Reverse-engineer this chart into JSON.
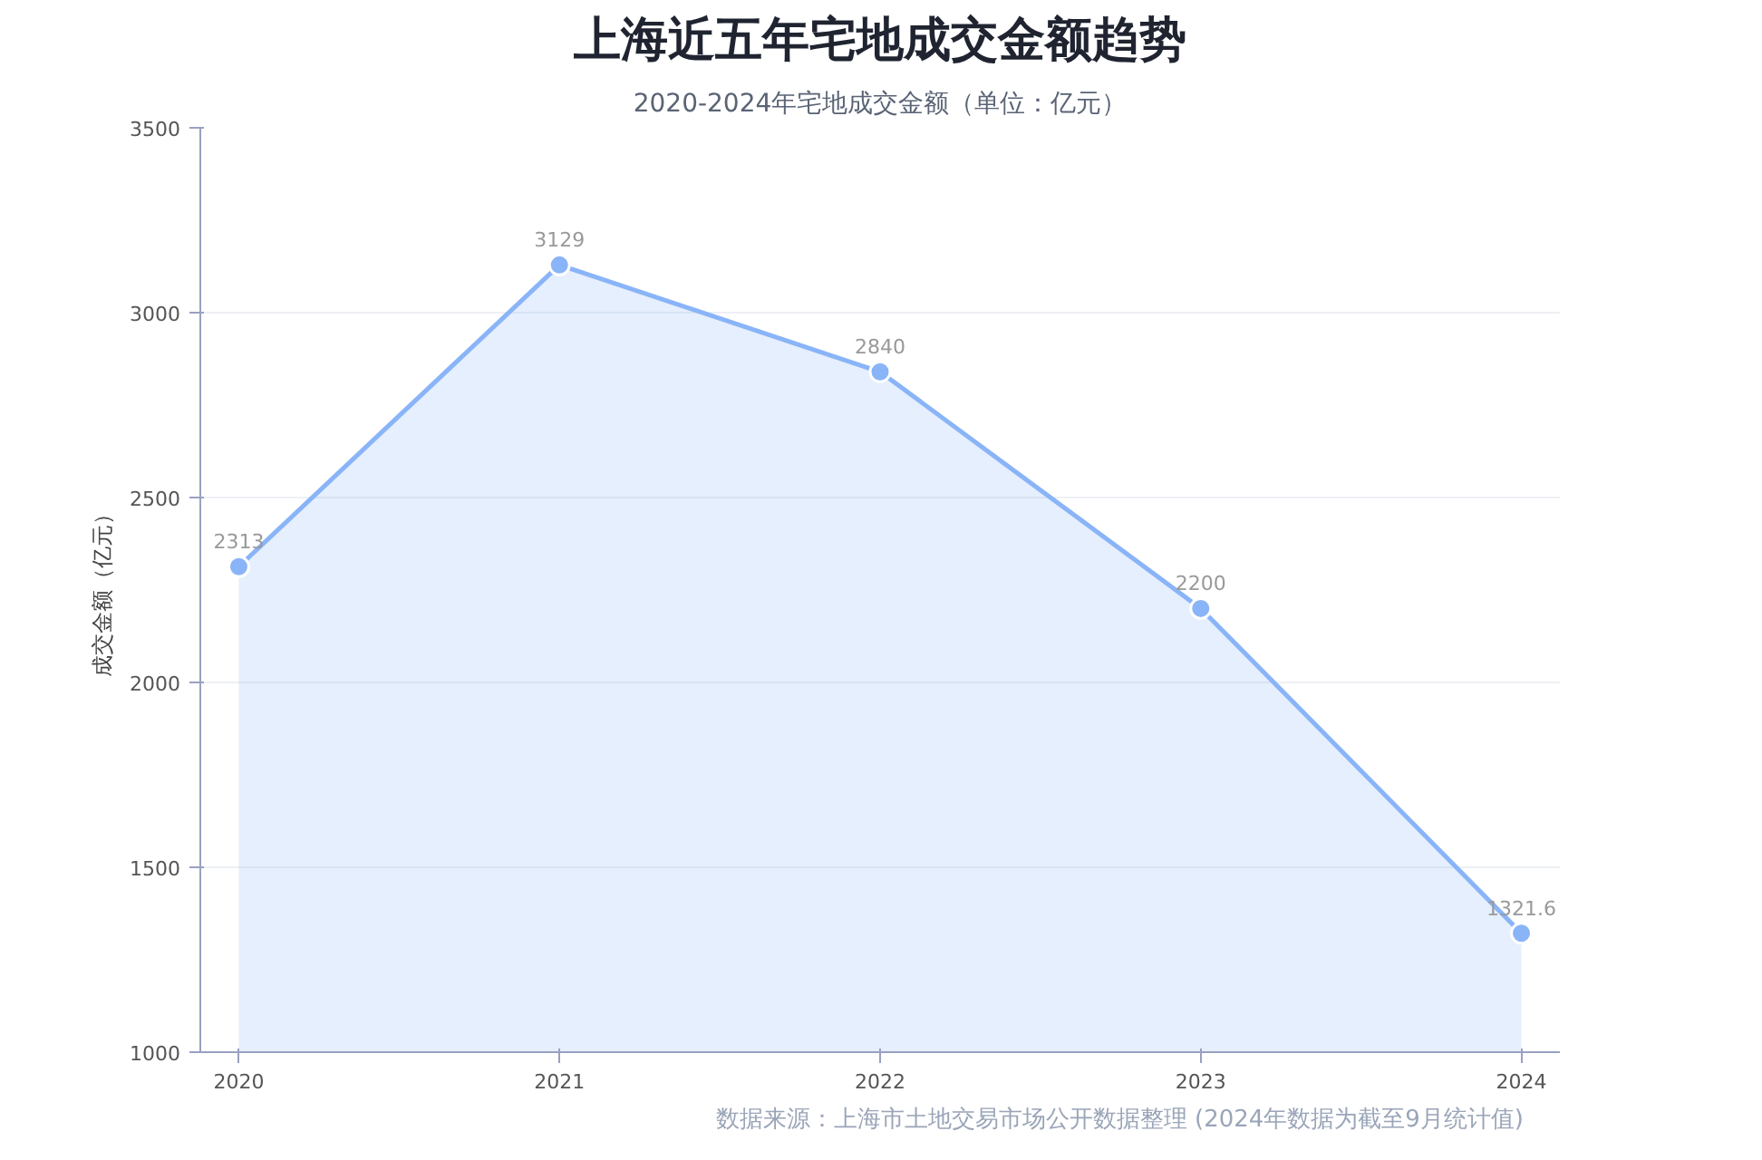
{
  "chart_data": {
    "type": "area",
    "title": "上海近五年宅地成交金额趋势",
    "subtitle": "2020-2024年宅地成交金额（单位：亿元）",
    "ylabel": "成交金额（亿元）",
    "categories": [
      "2020",
      "2021",
      "2022",
      "2023",
      "2024"
    ],
    "series": [
      {
        "color": "#8ab4f8",
        "values": [
          2313,
          3129,
          2840,
          2200,
          1321.6
        ]
      }
    ],
    "data_labels": true,
    "ylim": [
      1000,
      3500
    ],
    "yticks": [
      1000,
      1500,
      2000,
      2500,
      3000,
      3500
    ],
    "grid": "y",
    "marker": "circle",
    "line_style": "solid",
    "annotations": [
      "数据来源：上海市土地交易市场公开数据整理 (2024年数据为截至9月统计值)"
    ]
  }
}
